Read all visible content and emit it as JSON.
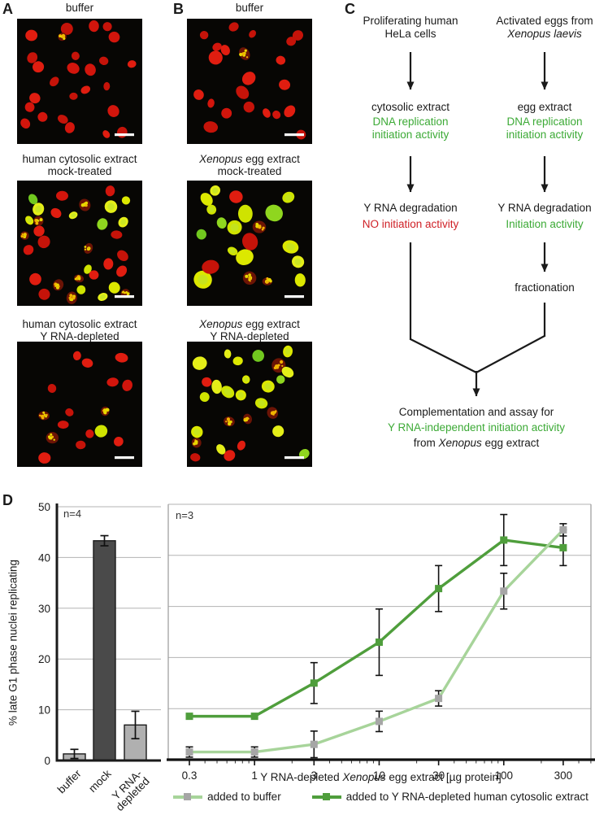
{
  "micrographs": {
    "a": {
      "letter": "A",
      "items": [
        {
          "title_lines": [
            [
              {
                "text": "buffer",
                "italic": false
              }
            ]
          ],
          "nuclei": {
            "red": 25,
            "yellow": 0,
            "green": 0,
            "speckled": 1,
            "rmin": 5,
            "rmax": 8
          },
          "seed": 11
        },
        {
          "title_lines": [
            [
              {
                "text": "human cytosolic extract",
                "italic": false
              }
            ],
            [
              {
                "text": "mock-treated",
                "italic": false
              }
            ]
          ],
          "nuclei": {
            "red": 13,
            "yellow": 10,
            "green": 2,
            "speckled": 8,
            "rmin": 5,
            "rmax": 8
          },
          "seed": 22
        },
        {
          "title_lines": [
            [
              {
                "text": "human cytosolic extract",
                "italic": false
              }
            ],
            [
              {
                "text": "Y RNA-depleted",
                "italic": false
              }
            ]
          ],
          "nuclei": {
            "red": 12,
            "yellow": 1,
            "green": 0,
            "speckled": 3,
            "rmin": 5,
            "rmax": 8
          },
          "seed": 33
        }
      ]
    },
    "b": {
      "letter": "B",
      "items": [
        {
          "title_lines": [
            [
              {
                "text": "buffer",
                "italic": false
              }
            ]
          ],
          "nuclei": {
            "red": 21,
            "yellow": 0,
            "green": 0,
            "speckled": 1,
            "rmin": 5,
            "rmax": 9
          },
          "seed": 44
        },
        {
          "title_lines": [
            [
              {
                "text": "Xenopus",
                "italic": true
              },
              {
                "text": " egg extract",
                "italic": false
              }
            ],
            [
              {
                "text": "mock-treated",
                "italic": false
              }
            ]
          ],
          "nuclei": {
            "red": 3,
            "yellow": 12,
            "green": 3,
            "speckled": 3,
            "rmin": 6,
            "rmax": 11
          },
          "seed": 55
        },
        {
          "title_lines": [
            [
              {
                "text": "Xenopus",
                "italic": true
              },
              {
                "text": " egg extract",
                "italic": false
              }
            ],
            [
              {
                "text": "Y RNA-depleted",
                "italic": false
              }
            ]
          ],
          "nuclei": {
            "red": 4,
            "yellow": 15,
            "green": 3,
            "speckled": 5,
            "rmin": 5,
            "rmax": 9
          },
          "seed": 66
        }
      ]
    }
  },
  "flowchart": {
    "letter": "C",
    "left_top_1": "Proliferating human",
    "left_top_2": "HeLa cells",
    "right_top_1": "Activated eggs from",
    "right_top_2": "Xenopus laevis",
    "left_extract": "cytosolic extract",
    "right_extract": "egg extract",
    "activity_1": "DNA replication",
    "activity_2": "initiation activity",
    "left_degradation": "Y RNA degradation",
    "right_degradation": "Y RNA degradation",
    "left_no_activity": "NO initiation activity",
    "right_activity": "Initiation activity",
    "fractionation": "fractionation",
    "final_1": "Complementation and assay for",
    "final_2": "Y RNA-independent initiation activity",
    "final_3_pre": "from ",
    "final_3_italic": "Xenopus",
    "final_3_post": " egg extract",
    "colors": {
      "green": "#3caa36",
      "red": "#cf2026"
    }
  },
  "panel_d": {
    "letter": "D",
    "xlabel_pre": "Y RNA-depleted ",
    "xlabel_italic": "Xenopus",
    "xlabel_post": " egg extract [µg protein]"
  },
  "chart_data": [
    {
      "type": "bar",
      "annotation": "n=4",
      "ylabel": "% late G1 phase nuclei replicating",
      "ylim": [
        0,
        50
      ],
      "yticks": [
        0,
        10,
        20,
        30,
        40,
        50
      ],
      "grid": true,
      "categories": [
        "buffer",
        "mock",
        "Y RNA-\ndepleted"
      ],
      "values": [
        1.3,
        43.3,
        7.0
      ],
      "errors": [
        0.9,
        1.0,
        2.7
      ],
      "bar_colors": [
        "#b0b0b0",
        "#4a4a4a",
        "#b0b0b0"
      ]
    },
    {
      "type": "line",
      "annotation": "n=3",
      "xlabel": "Y RNA-depleted Xenopus egg extract [µg protein]",
      "xscale": "log",
      "xticks": [
        0.3,
        1,
        3,
        10,
        30,
        100,
        300
      ],
      "xtick_labels": [
        "0.3",
        "1",
        "3",
        "10",
        "30",
        "100",
        "300"
      ],
      "ylim": [
        0,
        50
      ],
      "grid": true,
      "legend_position": "bottom",
      "x": [
        0.3,
        1,
        3,
        10,
        30,
        100,
        300
      ],
      "series": [
        {
          "name": "added to Y RNA-depleted human cytosolic extract",
          "line_color": "#4f9e3c",
          "marker_color": "#4f9e3c",
          "values": [
            8.5,
            8.5,
            15,
            23,
            33.5,
            43,
            41.5
          ],
          "errors": [
            0,
            0,
            4,
            6.5,
            4.5,
            5,
            3.5
          ]
        },
        {
          "name": "added to buffer",
          "line_color": "#a7d49a",
          "marker_color": "#a6a6a6",
          "values": [
            1.5,
            1.5,
            3,
            7.5,
            12,
            33,
            45
          ],
          "errors": [
            1,
            1,
            2.6,
            2,
            1.5,
            3.5,
            1.2
          ]
        }
      ]
    }
  ]
}
